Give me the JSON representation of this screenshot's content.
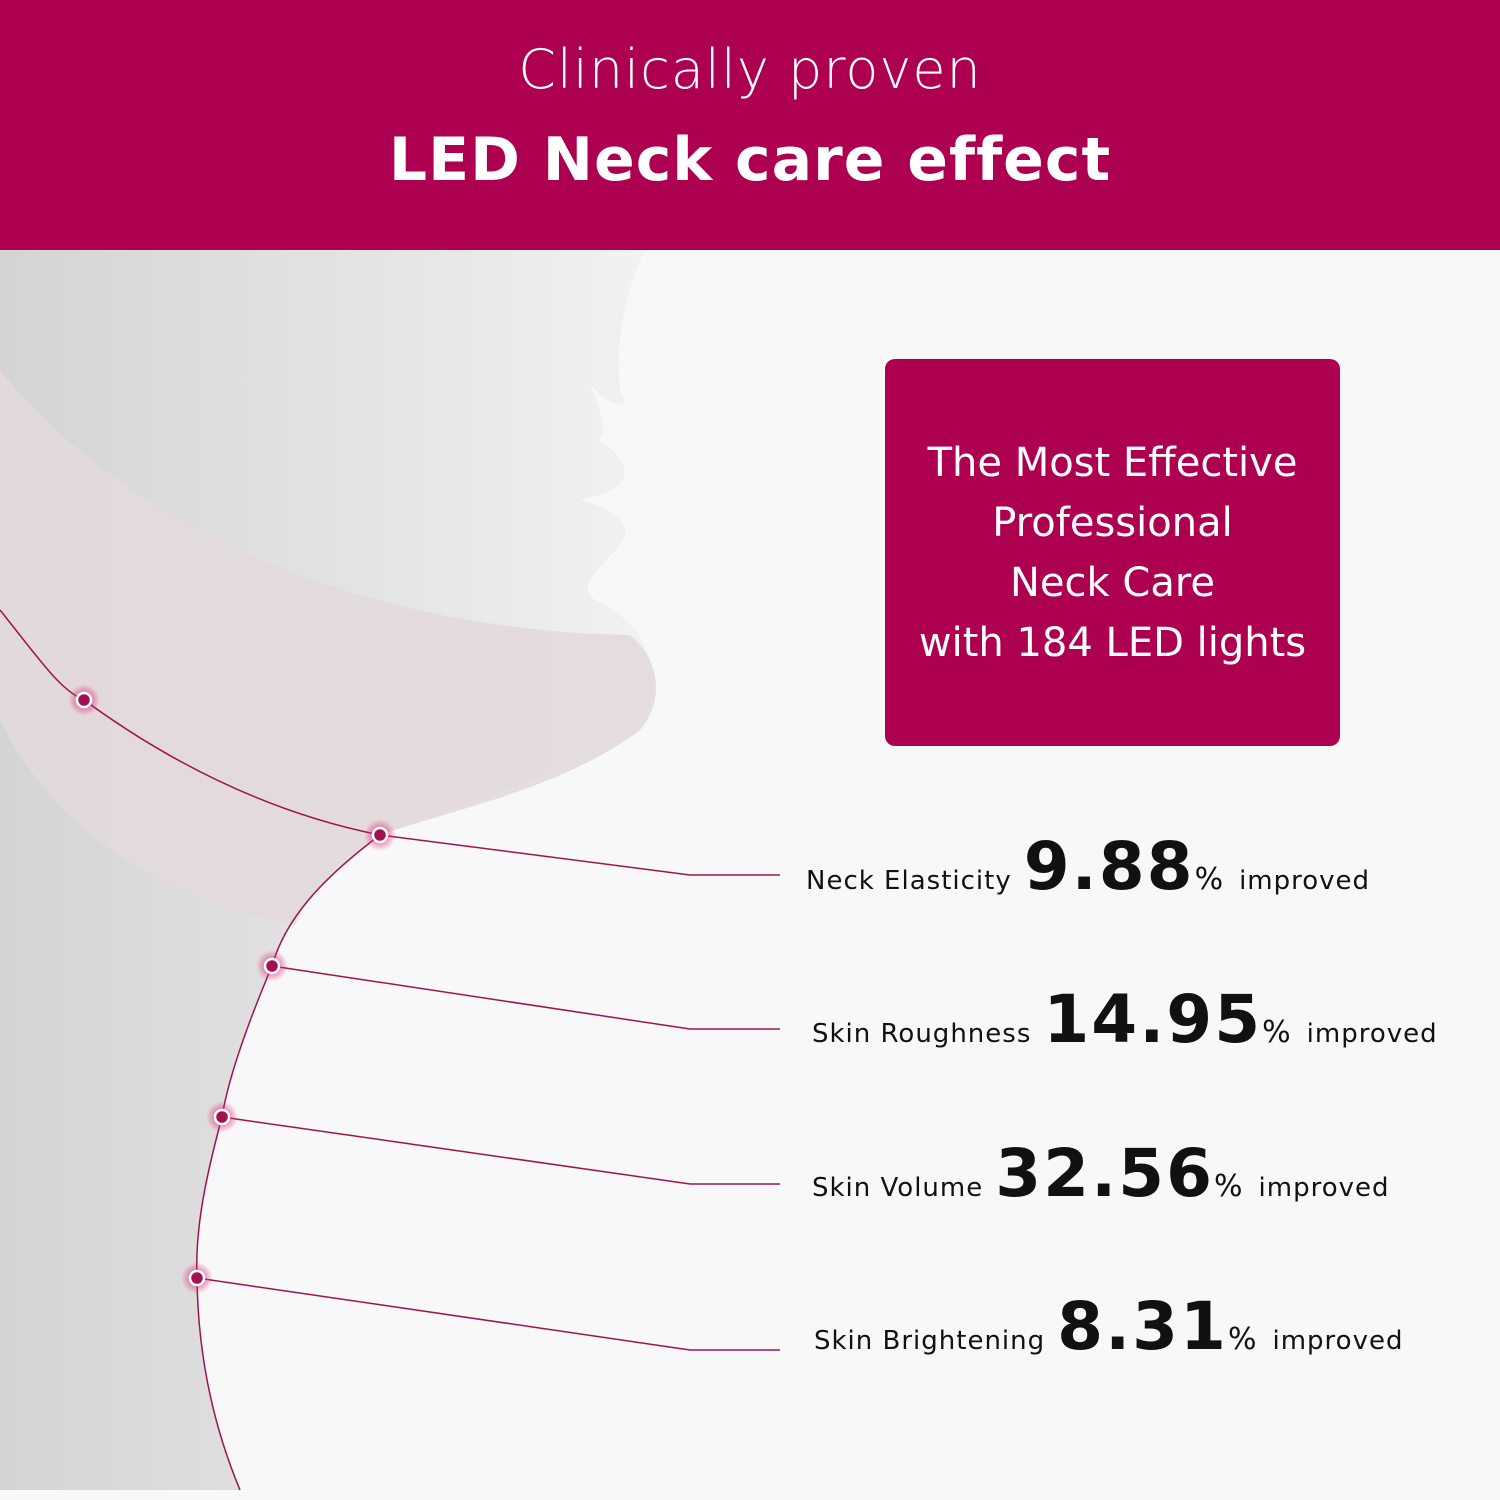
{
  "header": {
    "line1": "Clinically proven",
    "line2": "LED Neck care effect"
  },
  "callout": {
    "lines": [
      "The Most Effective",
      "Professional",
      "Neck Care",
      "with 184 LED lights"
    ]
  },
  "stats": [
    {
      "label": "Neck Elasticity",
      "value": "9.88",
      "unit": "%",
      "suffix": "improved"
    },
    {
      "label": "Skin Roughness",
      "value": "14.95",
      "unit": "%",
      "suffix": "improved"
    },
    {
      "label": "Skin Volume",
      "value": "32.56",
      "unit": "%",
      "suffix": "improved"
    },
    {
      "label": "Skin Brightening",
      "value": "8.31",
      "unit": "%",
      "suffix": "improved"
    }
  ],
  "colors": {
    "brand": "#ad0050",
    "band": "#e3d9da",
    "skin": "#dcdcdc",
    "background": "#f8f8f8"
  }
}
